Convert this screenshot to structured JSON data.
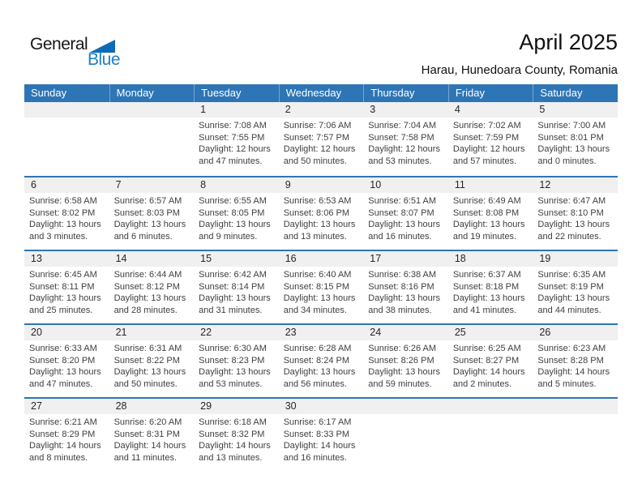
{
  "logo": {
    "general": "General",
    "blue": "Blue"
  },
  "header": {
    "title": "April 2025",
    "subtitle": "Harau, Hunedoara County, Romania"
  },
  "colors": {
    "header_blue": "#2E75B6",
    "number_strip_gray": "#F0F0F0",
    "logo_blue": "#1D80C4",
    "logo_triangle_blue": "#0E6BB5",
    "body_text": "#404040"
  },
  "calendar": {
    "day_headers": [
      "Sunday",
      "Monday",
      "Tuesday",
      "Wednesday",
      "Thursday",
      "Friday",
      "Saturday"
    ],
    "weeks": [
      [
        {
          "day": ""
        },
        {
          "day": ""
        },
        {
          "day": "1",
          "sunrise": "Sunrise: 7:08 AM",
          "sunset": "Sunset: 7:55 PM",
          "daylight1": "Daylight: 12 hours",
          "daylight2": "and 47 minutes."
        },
        {
          "day": "2",
          "sunrise": "Sunrise: 7:06 AM",
          "sunset": "Sunset: 7:57 PM",
          "daylight1": "Daylight: 12 hours",
          "daylight2": "and 50 minutes."
        },
        {
          "day": "3",
          "sunrise": "Sunrise: 7:04 AM",
          "sunset": "Sunset: 7:58 PM",
          "daylight1": "Daylight: 12 hours",
          "daylight2": "and 53 minutes."
        },
        {
          "day": "4",
          "sunrise": "Sunrise: 7:02 AM",
          "sunset": "Sunset: 7:59 PM",
          "daylight1": "Daylight: 12 hours",
          "daylight2": "and 57 minutes."
        },
        {
          "day": "5",
          "sunrise": "Sunrise: 7:00 AM",
          "sunset": "Sunset: 8:01 PM",
          "daylight1": "Daylight: 13 hours",
          "daylight2": "and 0 minutes."
        }
      ],
      [
        {
          "day": "6",
          "sunrise": "Sunrise: 6:58 AM",
          "sunset": "Sunset: 8:02 PM",
          "daylight1": "Daylight: 13 hours",
          "daylight2": "and 3 minutes."
        },
        {
          "day": "7",
          "sunrise": "Sunrise: 6:57 AM",
          "sunset": "Sunset: 8:03 PM",
          "daylight1": "Daylight: 13 hours",
          "daylight2": "and 6 minutes."
        },
        {
          "day": "8",
          "sunrise": "Sunrise: 6:55 AM",
          "sunset": "Sunset: 8:05 PM",
          "daylight1": "Daylight: 13 hours",
          "daylight2": "and 9 minutes."
        },
        {
          "day": "9",
          "sunrise": "Sunrise: 6:53 AM",
          "sunset": "Sunset: 8:06 PM",
          "daylight1": "Daylight: 13 hours",
          "daylight2": "and 13 minutes."
        },
        {
          "day": "10",
          "sunrise": "Sunrise: 6:51 AM",
          "sunset": "Sunset: 8:07 PM",
          "daylight1": "Daylight: 13 hours",
          "daylight2": "and 16 minutes."
        },
        {
          "day": "11",
          "sunrise": "Sunrise: 6:49 AM",
          "sunset": "Sunset: 8:08 PM",
          "daylight1": "Daylight: 13 hours",
          "daylight2": "and 19 minutes."
        },
        {
          "day": "12",
          "sunrise": "Sunrise: 6:47 AM",
          "sunset": "Sunset: 8:10 PM",
          "daylight1": "Daylight: 13 hours",
          "daylight2": "and 22 minutes."
        }
      ],
      [
        {
          "day": "13",
          "sunrise": "Sunrise: 6:45 AM",
          "sunset": "Sunset: 8:11 PM",
          "daylight1": "Daylight: 13 hours",
          "daylight2": "and 25 minutes."
        },
        {
          "day": "14",
          "sunrise": "Sunrise: 6:44 AM",
          "sunset": "Sunset: 8:12 PM",
          "daylight1": "Daylight: 13 hours",
          "daylight2": "and 28 minutes."
        },
        {
          "day": "15",
          "sunrise": "Sunrise: 6:42 AM",
          "sunset": "Sunset: 8:14 PM",
          "daylight1": "Daylight: 13 hours",
          "daylight2": "and 31 minutes."
        },
        {
          "day": "16",
          "sunrise": "Sunrise: 6:40 AM",
          "sunset": "Sunset: 8:15 PM",
          "daylight1": "Daylight: 13 hours",
          "daylight2": "and 34 minutes."
        },
        {
          "day": "17",
          "sunrise": "Sunrise: 6:38 AM",
          "sunset": "Sunset: 8:16 PM",
          "daylight1": "Daylight: 13 hours",
          "daylight2": "and 38 minutes."
        },
        {
          "day": "18",
          "sunrise": "Sunrise: 6:37 AM",
          "sunset": "Sunset: 8:18 PM",
          "daylight1": "Daylight: 13 hours",
          "daylight2": "and 41 minutes."
        },
        {
          "day": "19",
          "sunrise": "Sunrise: 6:35 AM",
          "sunset": "Sunset: 8:19 PM",
          "daylight1": "Daylight: 13 hours",
          "daylight2": "and 44 minutes."
        }
      ],
      [
        {
          "day": "20",
          "sunrise": "Sunrise: 6:33 AM",
          "sunset": "Sunset: 8:20 PM",
          "daylight1": "Daylight: 13 hours",
          "daylight2": "and 47 minutes."
        },
        {
          "day": "21",
          "sunrise": "Sunrise: 6:31 AM",
          "sunset": "Sunset: 8:22 PM",
          "daylight1": "Daylight: 13 hours",
          "daylight2": "and 50 minutes."
        },
        {
          "day": "22",
          "sunrise": "Sunrise: 6:30 AM",
          "sunset": "Sunset: 8:23 PM",
          "daylight1": "Daylight: 13 hours",
          "daylight2": "and 53 minutes."
        },
        {
          "day": "23",
          "sunrise": "Sunrise: 6:28 AM",
          "sunset": "Sunset: 8:24 PM",
          "daylight1": "Daylight: 13 hours",
          "daylight2": "and 56 minutes."
        },
        {
          "day": "24",
          "sunrise": "Sunrise: 6:26 AM",
          "sunset": "Sunset: 8:26 PM",
          "daylight1": "Daylight: 13 hours",
          "daylight2": "and 59 minutes."
        },
        {
          "day": "25",
          "sunrise": "Sunrise: 6:25 AM",
          "sunset": "Sunset: 8:27 PM",
          "daylight1": "Daylight: 14 hours",
          "daylight2": "and 2 minutes."
        },
        {
          "day": "26",
          "sunrise": "Sunrise: 6:23 AM",
          "sunset": "Sunset: 8:28 PM",
          "daylight1": "Daylight: 14 hours",
          "daylight2": "and 5 minutes."
        }
      ],
      [
        {
          "day": "27",
          "sunrise": "Sunrise: 6:21 AM",
          "sunset": "Sunset: 8:29 PM",
          "daylight1": "Daylight: 14 hours",
          "daylight2": "and 8 minutes."
        },
        {
          "day": "28",
          "sunrise": "Sunrise: 6:20 AM",
          "sunset": "Sunset: 8:31 PM",
          "daylight1": "Daylight: 14 hours",
          "daylight2": "and 11 minutes."
        },
        {
          "day": "29",
          "sunrise": "Sunrise: 6:18 AM",
          "sunset": "Sunset: 8:32 PM",
          "daylight1": "Daylight: 14 hours",
          "daylight2": "and 13 minutes."
        },
        {
          "day": "30",
          "sunrise": "Sunrise: 6:17 AM",
          "sunset": "Sunset: 8:33 PM",
          "daylight1": "Daylight: 14 hours",
          "daylight2": "and 16 minutes."
        },
        {
          "day": ""
        },
        {
          "day": ""
        },
        {
          "day": ""
        }
      ]
    ]
  }
}
